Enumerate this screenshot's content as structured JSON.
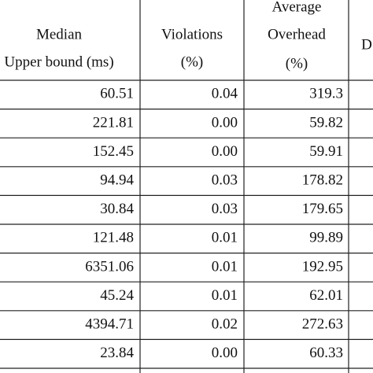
{
  "table": {
    "header": [
      [
        "Median",
        "Upper bound (ms)"
      ],
      [
        "Violations",
        "(%)"
      ],
      [
        "Average",
        "Overhead",
        "(%)"
      ],
      [
        "D"
      ]
    ],
    "rows": [
      [
        "60.51",
        "0.04",
        "319.3"
      ],
      [
        "221.81",
        "0.00",
        "59.82"
      ],
      [
        "152.45",
        "0.00",
        "59.91"
      ],
      [
        "94.94",
        "0.03",
        "178.82"
      ],
      [
        "30.84",
        "0.03",
        "179.65"
      ],
      [
        "121.48",
        "0.01",
        "99.89"
      ],
      [
        "6351.06",
        "0.01",
        "192.95"
      ],
      [
        "45.24",
        "0.01",
        "62.01"
      ],
      [
        "4394.71",
        "0.02",
        "272.63"
      ],
      [
        "23.84",
        "0.00",
        "60.33"
      ]
    ]
  }
}
